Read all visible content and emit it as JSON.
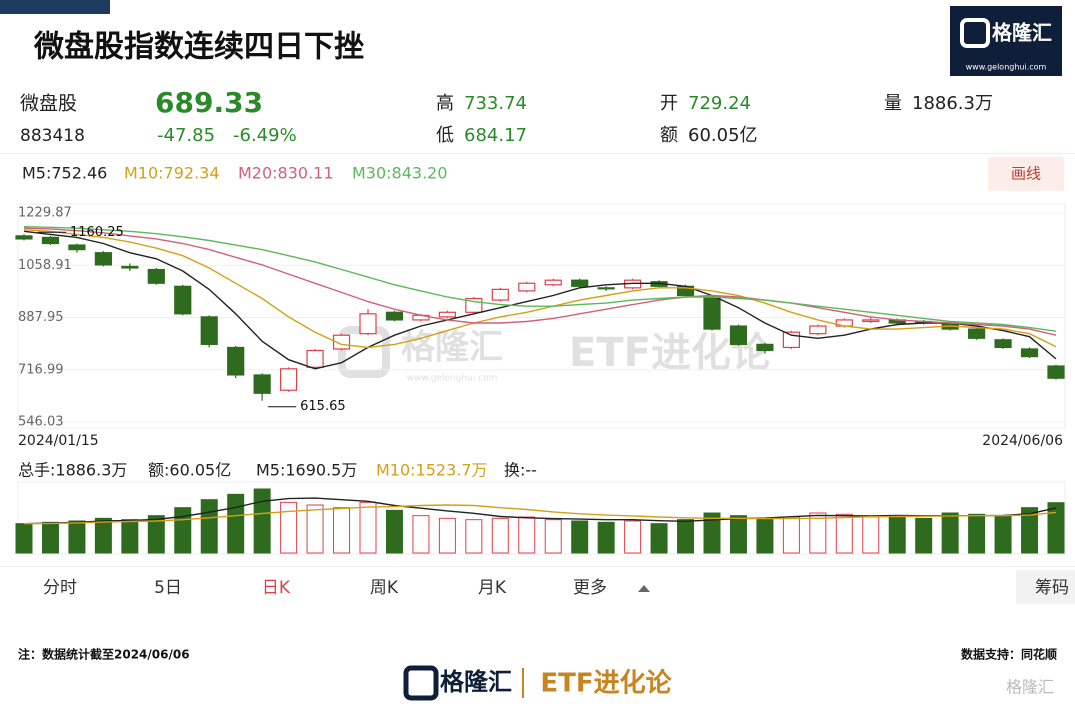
{
  "header": {
    "title": "微盘股指数连续四日下挫",
    "logo": "格隆汇",
    "logo_url": "www.gelonghui.com"
  },
  "quote": {
    "name": "微盘股",
    "code": "883418",
    "price": "689.33",
    "change": "-47.85",
    "change_pct": "-6.49%",
    "high_label": "高",
    "high": "733.74",
    "low_label": "低",
    "low": "684.17",
    "open_label": "开",
    "open": "729.24",
    "volume_label": "量",
    "volume": "1886.3万",
    "amount_label": "额",
    "amount": "60.05亿"
  },
  "draw_button": "画线",
  "chart_data": {
    "type": "candlestick",
    "legend": [
      "M5:752.46",
      "M10:792.34",
      "M20:830.11",
      "M30:843.20"
    ],
    "ylim": [
      546.03,
      1229.87
    ],
    "yticks": [
      1229.87,
      1058.91,
      887.95,
      716.99,
      546.03
    ],
    "x_start": "2024/01/15",
    "x_end": "2024/06/06",
    "up_color": "#e0404a",
    "down_color": "#2f6b1e",
    "open": [
      1155,
      1150,
      1125,
      1100,
      1055,
      1045,
      990,
      890,
      790,
      700,
      650,
      725,
      785,
      835,
      905,
      880,
      890,
      905,
      945,
      975,
      995,
      1010,
      985,
      985,
      1005,
      990,
      955,
      860,
      800,
      790,
      835,
      860,
      875,
      880,
      875,
      870,
      850,
      815,
      785,
      729.24
    ],
    "close": [
      1145,
      1130,
      1110,
      1060,
      1050,
      1000,
      900,
      800,
      700,
      640,
      720,
      780,
      830,
      900,
      880,
      895,
      905,
      950,
      980,
      1000,
      1010,
      990,
      985,
      1010,
      990,
      960,
      850,
      800,
      780,
      840,
      860,
      880,
      880,
      870,
      870,
      850,
      820,
      790,
      760,
      689.33
    ],
    "high": [
      1160.25,
      1155,
      1130,
      1105,
      1065,
      1050,
      995,
      895,
      795,
      705,
      725,
      785,
      835,
      915,
      910,
      900,
      910,
      955,
      985,
      1005,
      1015,
      1015,
      990,
      1015,
      1010,
      995,
      960,
      865,
      805,
      845,
      865,
      885,
      890,
      885,
      880,
      875,
      855,
      820,
      790,
      733.74
    ],
    "low": [
      1140,
      1125,
      1100,
      1055,
      1040,
      995,
      895,
      790,
      690,
      615.65,
      645,
      720,
      780,
      830,
      875,
      875,
      885,
      900,
      940,
      970,
      990,
      985,
      975,
      980,
      985,
      955,
      845,
      795,
      770,
      785,
      830,
      855,
      870,
      865,
      865,
      845,
      815,
      785,
      755,
      684.17
    ],
    "ma": [
      {
        "name": "M5",
        "color": "#222222",
        "values": [
          1170,
          1160,
          1150,
          1130,
          1100,
          1080,
          1040,
          980,
          900,
          810,
          750,
          720,
          740,
          790,
          830,
          860,
          880,
          900,
          920,
          940,
          960,
          985,
          995,
          1000,
          1000,
          990,
          960,
          920,
          870,
          830,
          820,
          830,
          850,
          865,
          870,
          870,
          860,
          845,
          825,
          752.46
        ]
      },
      {
        "name": "M10",
        "color": "#d4a017",
        "values": [
          1175,
          1170,
          1160,
          1150,
          1135,
          1115,
          1090,
          1050,
          1000,
          950,
          890,
          840,
          800,
          790,
          800,
          820,
          845,
          870,
          890,
          905,
          925,
          945,
          960,
          975,
          985,
          985,
          975,
          960,
          935,
          905,
          880,
          860,
          850,
          850,
          855,
          860,
          855,
          850,
          835,
          792.34
        ]
      },
      {
        "name": "M20",
        "color": "#d45f7a",
        "values": [
          1180,
          1178,
          1172,
          1165,
          1155,
          1145,
          1130,
          1110,
          1085,
          1060,
          1030,
          1000,
          970,
          940,
          915,
          895,
          880,
          870,
          870,
          875,
          885,
          900,
          915,
          930,
          945,
          955,
          960,
          955,
          945,
          935,
          920,
          905,
          890,
          880,
          875,
          870,
          865,
          860,
          850,
          830.11
        ]
      },
      {
        "name": "M30",
        "color": "#5cb85c",
        "values": [
          1185,
          1183,
          1180,
          1175,
          1170,
          1162,
          1152,
          1140,
          1125,
          1110,
          1090,
          1070,
          1045,
          1020,
          995,
          975,
          955,
          940,
          930,
          925,
          925,
          930,
          935,
          945,
          950,
          955,
          955,
          950,
          945,
          935,
          925,
          915,
          905,
          895,
          885,
          875,
          870,
          865,
          855,
          843.2
        ]
      }
    ]
  },
  "volume_data": {
    "type": "bar",
    "legend": [
      "总手:1886.3万",
      "额:60.05亿",
      "M5:1690.5万",
      "M10:1523.7万",
      "换:--"
    ],
    "values": [
      1100,
      1150,
      1200,
      1300,
      1250,
      1400,
      1700,
      2000,
      2200,
      2400,
      1900,
      1800,
      1700,
      1900,
      1600,
      1400,
      1300,
      1250,
      1300,
      1350,
      1250,
      1200,
      1150,
      1200,
      1100,
      1250,
      1500,
      1400,
      1300,
      1350,
      1500,
      1450,
      1350,
      1400,
      1300,
      1500,
      1450,
      1400,
      1700,
      1886.3
    ],
    "ma": [
      {
        "name": "M5",
        "color": "#222222",
        "values": [
          1100,
          1120,
          1150,
          1200,
          1220,
          1260,
          1370,
          1530,
          1710,
          1940,
          2040,
          2060,
          2000,
          1940,
          1780,
          1680,
          1580,
          1490,
          1370,
          1320,
          1290,
          1270,
          1250,
          1250,
          1210,
          1190,
          1240,
          1290,
          1310,
          1360,
          1410,
          1400,
          1390,
          1410,
          1400,
          1400,
          1400,
          1410,
          1470,
          1690.5
        ]
      },
      {
        "name": "M10",
        "color": "#d4a017",
        "values": [
          1100,
          1110,
          1130,
          1160,
          1180,
          1200,
          1250,
          1320,
          1400,
          1480,
          1560,
          1620,
          1670,
          1720,
          1740,
          1780,
          1800,
          1780,
          1700,
          1630,
          1540,
          1470,
          1420,
          1390,
          1350,
          1320,
          1300,
          1300,
          1290,
          1290,
          1300,
          1330,
          1360,
          1370,
          1380,
          1390,
          1400,
          1400,
          1420,
          1523.7
        ]
      }
    ]
  },
  "tabs": [
    "分时",
    "5日",
    "日K",
    "周K",
    "月K",
    "更多"
  ],
  "chips_tab": "筹码",
  "footer": {
    "note": "注：数据统计截至2024/06/06",
    "source": "数据支持：同花顺",
    "brand": "ETF进化论"
  }
}
